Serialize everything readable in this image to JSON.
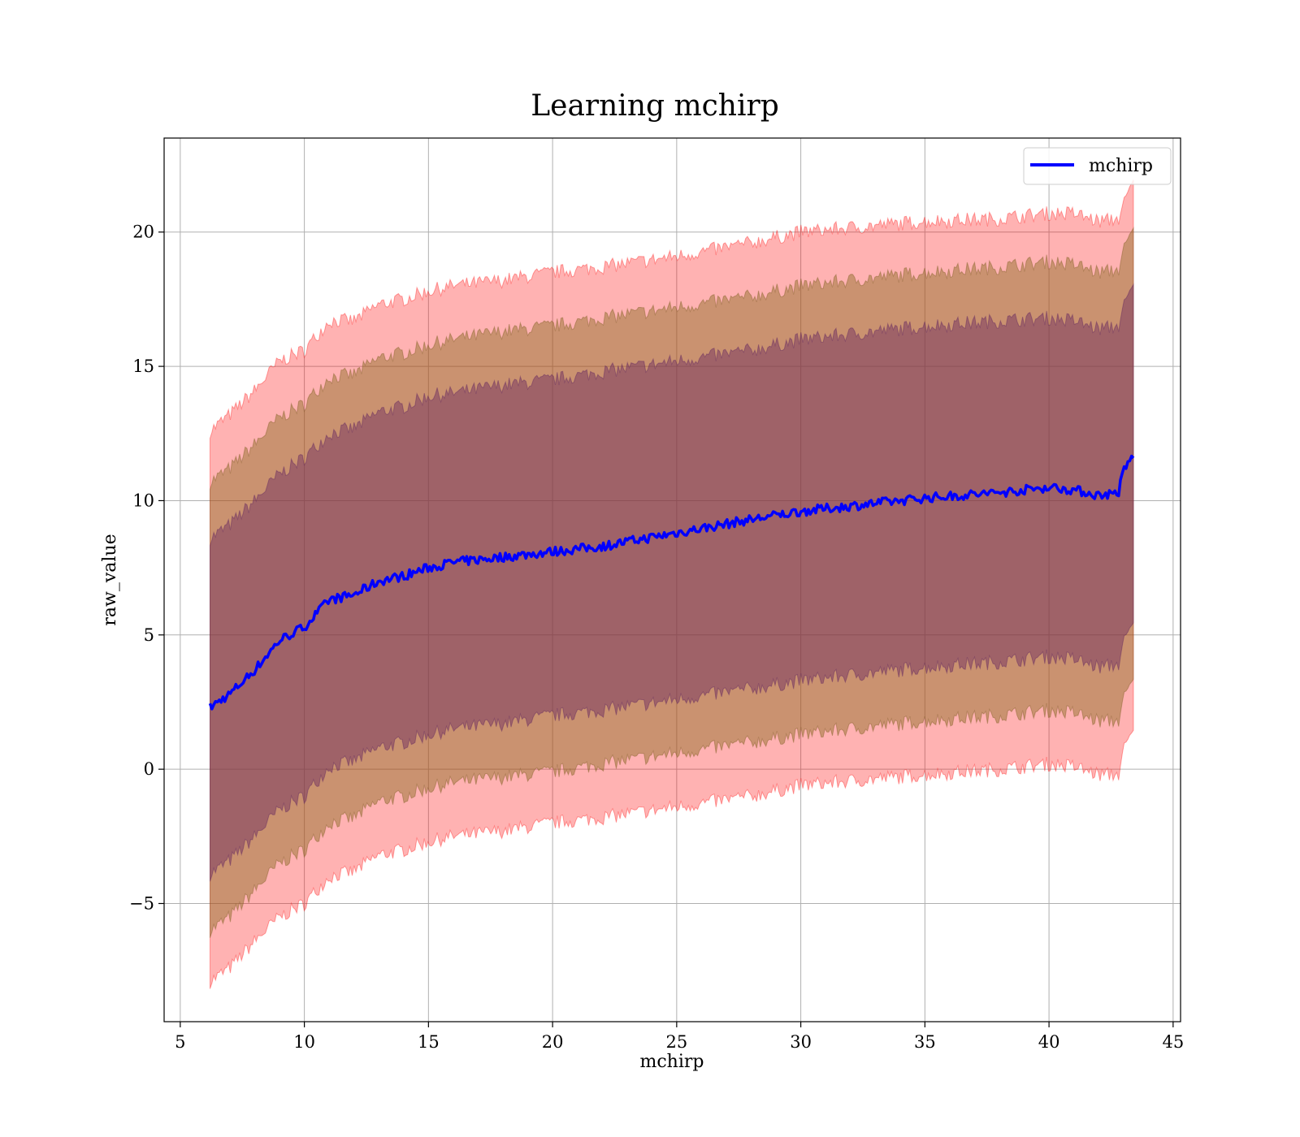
{
  "chart_data": {
    "type": "area",
    "title": "Learning mchirp",
    "xlabel": "mchirp",
    "ylabel": "raw_value",
    "xlim": [
      4.35,
      45.3
    ],
    "ylim": [
      -9.4,
      23.5
    ],
    "xticks": [
      5,
      10,
      15,
      20,
      25,
      30,
      35,
      40,
      45
    ],
    "yticks": [
      -5,
      0,
      5,
      10,
      15,
      20
    ],
    "grid": true,
    "legend": {
      "placement": "top-right",
      "entries": [
        "mchirp"
      ]
    },
    "colors": {
      "line": "#0000ff",
      "band": "#ff0000",
      "band_overlap": "#803050",
      "grid": "#b0b0b0"
    },
    "x": [
      6.2,
      7,
      8,
      9,
      10,
      11,
      12,
      13,
      14,
      15,
      16,
      18,
      20,
      22,
      25,
      28,
      30,
      35,
      38,
      40,
      41,
      42,
      42.8,
      43,
      43.4
    ],
    "series": [
      {
        "name": "mchirp",
        "role": "mean",
        "values": [
          2.3,
          2.8,
          3.7,
          4.8,
          5.3,
          6.3,
          6.5,
          7.0,
          7.2,
          7.5,
          7.7,
          7.9,
          8.1,
          8.3,
          8.8,
          9.3,
          9.6,
          10.1,
          10.3,
          10.5,
          10.4,
          10.2,
          10.3,
          11.1,
          11.7
        ]
      },
      {
        "name": "",
        "role": "upper band 3",
        "values": [
          12.6,
          13.2,
          14.1,
          15.2,
          15.6,
          16.7,
          16.7,
          17.3,
          17.5,
          17.8,
          18.0,
          18.2,
          18.5,
          18.7,
          19.1,
          19.6,
          20.0,
          20.4,
          20.5,
          20.7,
          20.7,
          20.4,
          20.5,
          21.0,
          21.9
        ]
      },
      {
        "name": "",
        "role": "upper band 2",
        "values": [
          10.7,
          11.2,
          12.1,
          13.1,
          13.6,
          14.6,
          14.7,
          15.3,
          15.5,
          15.8,
          16.0,
          16.3,
          16.5,
          16.8,
          17.2,
          17.6,
          18.0,
          18.5,
          18.7,
          18.9,
          18.8,
          18.5,
          18.6,
          19.3,
          20.1
        ]
      },
      {
        "name": "",
        "role": "upper band 1",
        "values": [
          8.6,
          9.1,
          10.0,
          11.0,
          11.6,
          12.5,
          12.7,
          13.3,
          13.5,
          13.9,
          14.0,
          14.3,
          14.5,
          14.8,
          15.2,
          15.6,
          16.0,
          16.5,
          16.7,
          16.8,
          16.7,
          16.4,
          16.5,
          17.2,
          18.0
        ]
      },
      {
        "name": "",
        "role": "lower band 1",
        "values": [
          -3.9,
          -3.4,
          -2.5,
          -1.5,
          -1.0,
          0.1,
          0.3,
          0.8,
          1.0,
          1.3,
          1.5,
          1.7,
          2.0,
          2.2,
          2.6,
          3.0,
          3.3,
          3.8,
          4.0,
          4.2,
          4.1,
          3.8,
          3.9,
          4.7,
          5.4
        ]
      },
      {
        "name": "",
        "role": "lower band 2",
        "values": [
          -6.0,
          -5.5,
          -4.5,
          -3.5,
          -3.0,
          -2.0,
          -1.8,
          -1.2,
          -1.0,
          -0.7,
          -0.5,
          -0.3,
          -0.1,
          0.2,
          0.6,
          1.0,
          1.3,
          1.8,
          2.0,
          2.2,
          2.1,
          1.8,
          1.8,
          2.6,
          3.3
        ]
      },
      {
        "name": "",
        "role": "lower band 3",
        "values": [
          -7.9,
          -7.4,
          -6.4,
          -5.5,
          -5.0,
          -4.0,
          -3.8,
          -3.2,
          -3.0,
          -2.7,
          -2.5,
          -2.3,
          -2.0,
          -1.8,
          -1.4,
          -1.0,
          -0.6,
          -0.2,
          0.0,
          0.2,
          0.1,
          -0.2,
          -0.2,
          0.7,
          1.4
        ]
      }
    ]
  }
}
